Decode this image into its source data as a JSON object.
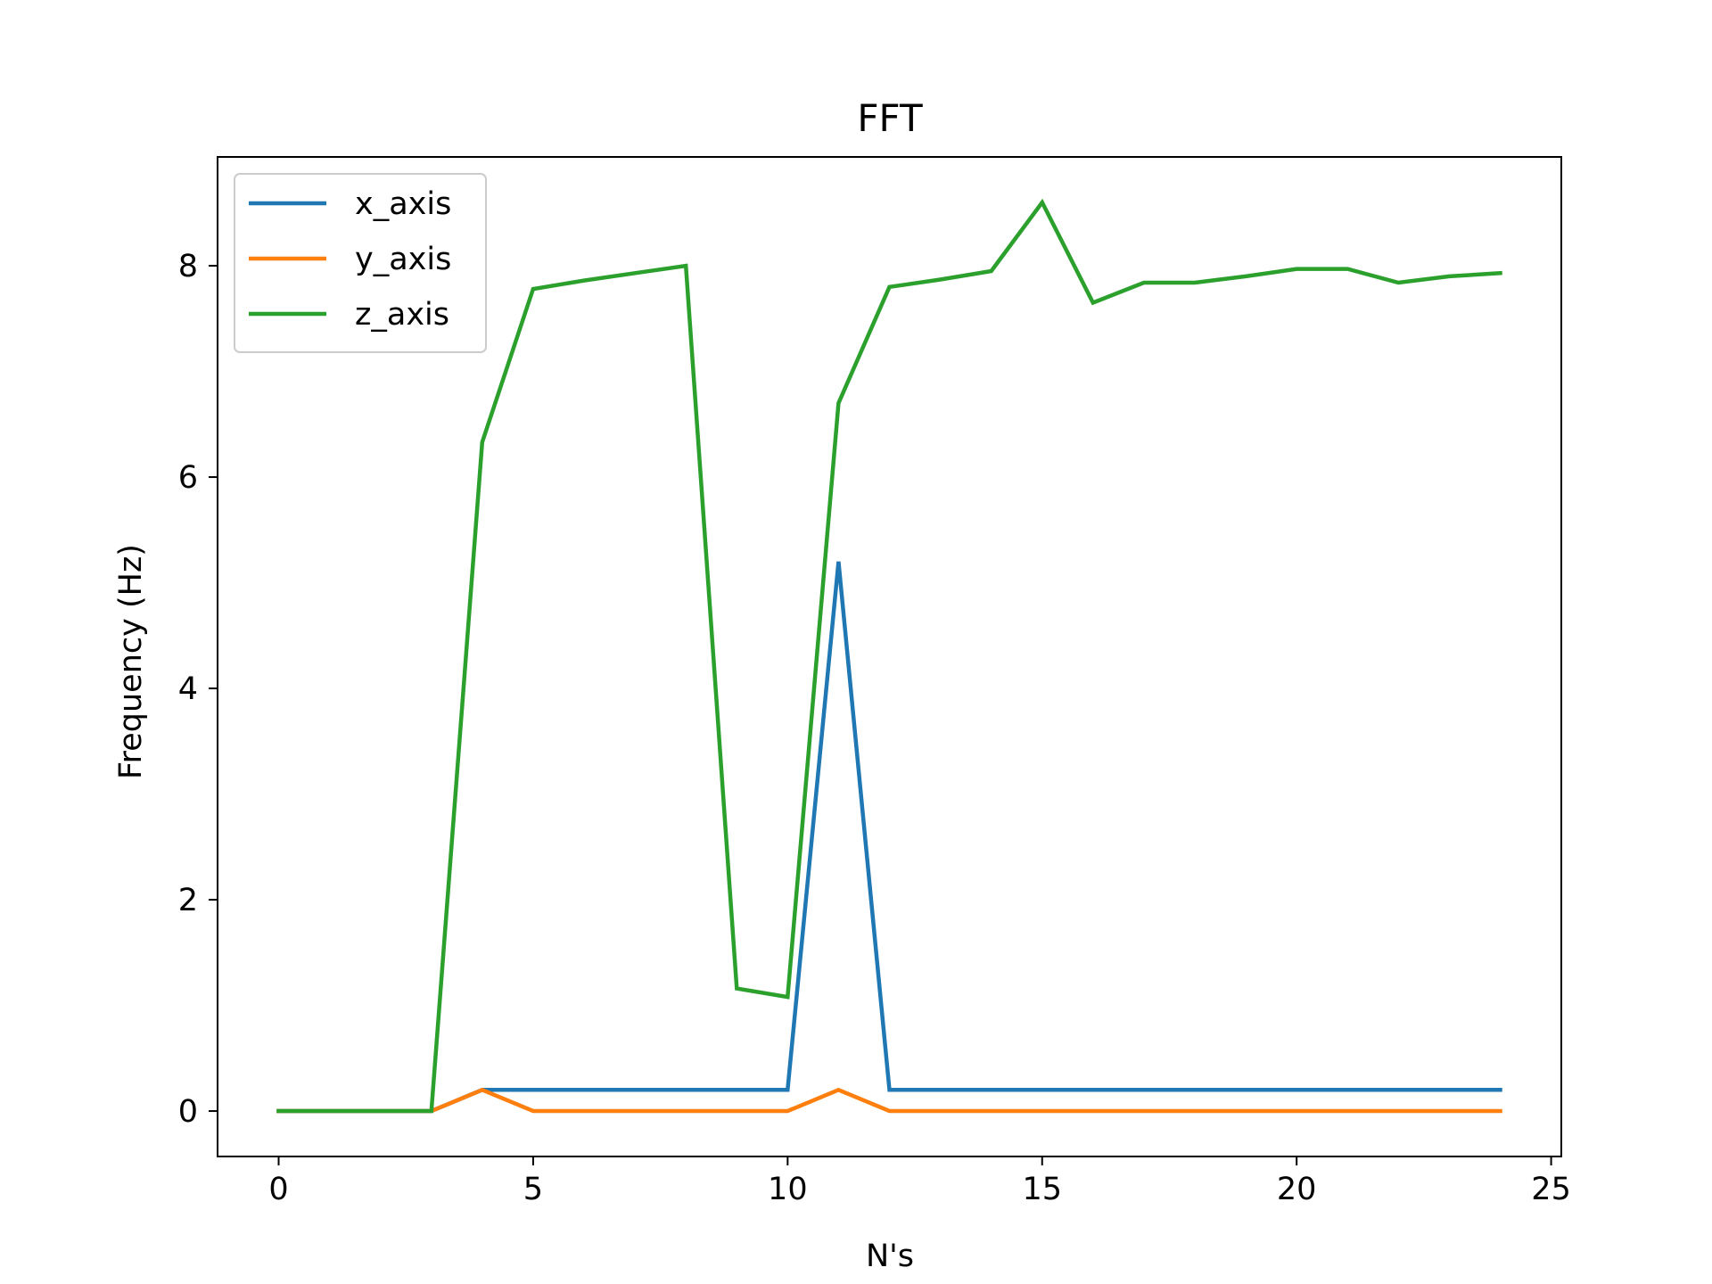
{
  "chart_data": {
    "type": "line",
    "title": "FFT",
    "xlabel": "N's",
    "ylabel": "Frequency (Hz)",
    "xlim": [
      -1.2,
      25.2
    ],
    "ylim": [
      -0.43,
      9.03
    ],
    "xticks": [
      0,
      5,
      10,
      15,
      20,
      25
    ],
    "yticks": [
      0,
      2,
      4,
      6,
      8
    ],
    "grid": false,
    "legend_position": "top-left",
    "x": [
      0,
      1,
      2,
      3,
      4,
      5,
      6,
      7,
      8,
      9,
      10,
      11,
      12,
      13,
      14,
      15,
      16,
      17,
      18,
      19,
      20,
      21,
      22,
      23,
      24
    ],
    "series": [
      {
        "name": "x_axis",
        "color": "#1f77b4",
        "values": [
          0,
          0,
          0,
          0,
          0.2,
          0.2,
          0.2,
          0.2,
          0.2,
          0.2,
          0.2,
          5.2,
          0.2,
          0.2,
          0.2,
          0.2,
          0.2,
          0.2,
          0.2,
          0.2,
          0.2,
          0.2,
          0.2,
          0.2,
          0.2
        ]
      },
      {
        "name": "y_axis",
        "color": "#ff7f0e",
        "values": [
          0,
          0,
          0,
          0,
          0.2,
          0,
          0,
          0,
          0,
          0,
          0,
          0.2,
          0,
          0,
          0,
          0,
          0,
          0,
          0,
          0,
          0,
          0,
          0,
          0,
          0
        ]
      },
      {
        "name": "z_axis",
        "color": "#2ca02c",
        "values": [
          0,
          0,
          0,
          0,
          6.33,
          7.78,
          7.86,
          7.93,
          8.0,
          1.16,
          1.08,
          6.7,
          7.8,
          7.87,
          7.95,
          8.6,
          7.65,
          7.84,
          7.84,
          7.9,
          7.97,
          7.97,
          7.84,
          7.9,
          7.93
        ]
      }
    ]
  }
}
